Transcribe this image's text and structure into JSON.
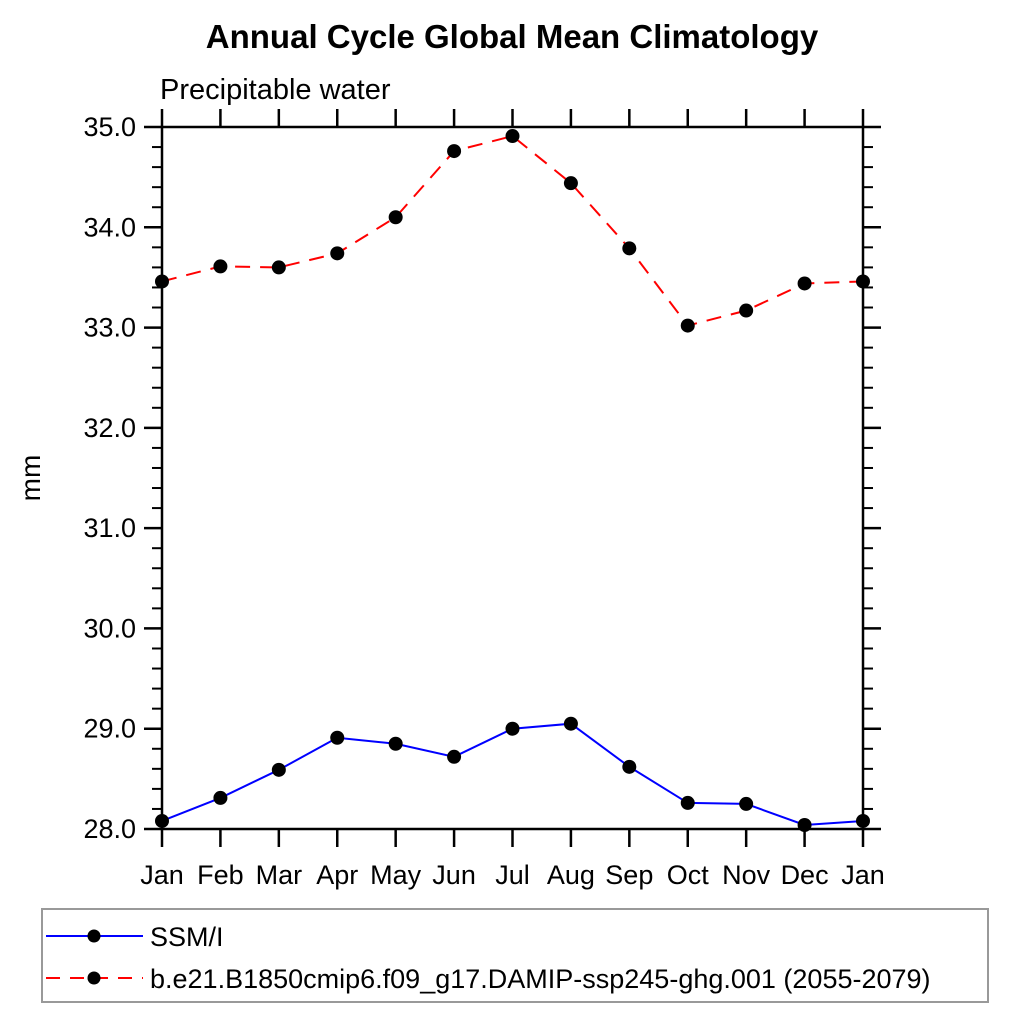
{
  "page": {
    "background": "#ffffff"
  },
  "chart_data": {
    "type": "line",
    "title": "Annual Cycle Global Mean Climatology",
    "subtitle": "Precipitable water",
    "ylabel": "mm",
    "categories": [
      "Jan",
      "Feb",
      "Mar",
      "Apr",
      "May",
      "Jun",
      "Jul",
      "Aug",
      "Sep",
      "Oct",
      "Nov",
      "Dec",
      "Jan"
    ],
    "series": [
      {
        "name": "SSM/I",
        "line_style": "solid",
        "color": "#0000ff",
        "marker": "filled-circle",
        "marker_color": "#000000",
        "values": [
          28.08,
          28.31,
          28.59,
          28.91,
          28.85,
          28.72,
          29.0,
          29.05,
          28.62,
          28.26,
          28.25,
          28.04,
          28.08
        ]
      },
      {
        "name": "b.e21.B1850cmip6.f09_g17.DAMIP-ssp245-ghg.001 (2055-2079)",
        "line_style": "dashed",
        "color": "#ff0000",
        "marker": "filled-circle",
        "marker_color": "#000000",
        "values": [
          33.46,
          33.61,
          33.6,
          33.74,
          34.1,
          34.76,
          34.91,
          34.44,
          33.79,
          33.02,
          33.17,
          33.44,
          33.46
        ]
      }
    ],
    "ylim": [
      28.0,
      35.0
    ],
    "ytick_major_step": 1.0,
    "ytick_minor_step": 0.2,
    "ytick_labels": [
      "28.0",
      "29.0",
      "30.0",
      "31.0",
      "32.0",
      "33.0",
      "34.0",
      "35.0"
    ],
    "grid": false,
    "legend_position": "bottom-left-box",
    "axis_color": "#000000",
    "legend_border_color": "#999999"
  }
}
